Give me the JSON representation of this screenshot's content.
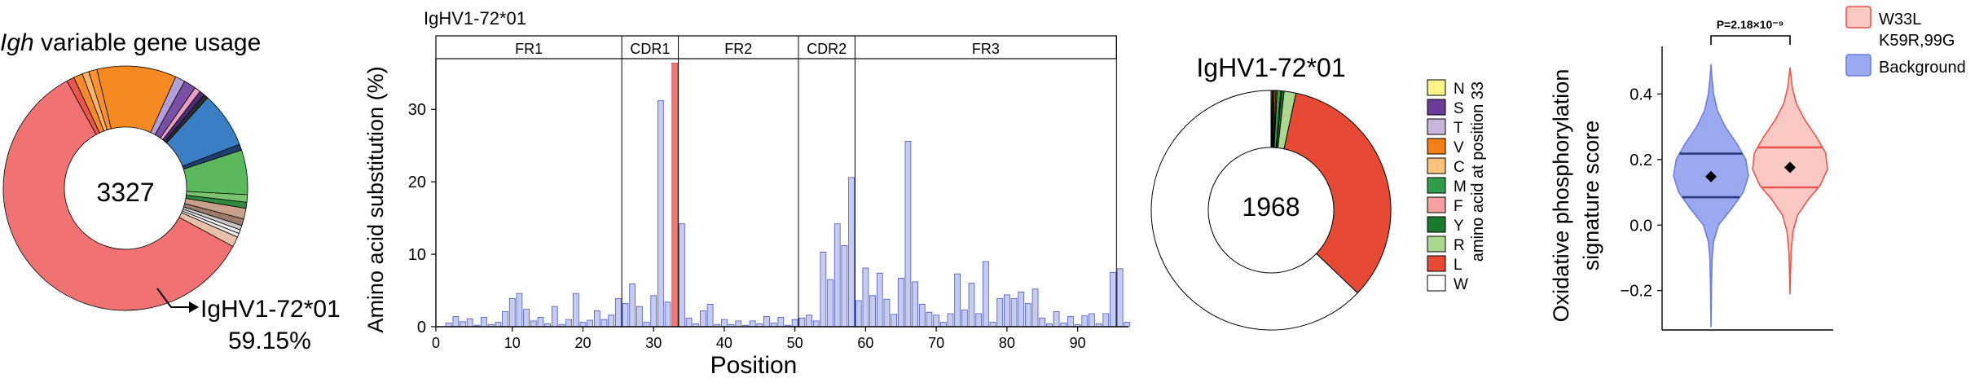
{
  "chart_data": [
    {
      "type": "pie",
      "title_italic": "Igh",
      "title_rest": " variable gene usage",
      "center_label": "3327",
      "callout_label": "IgHV1-72*01",
      "callout_value": "59.15%",
      "slices": [
        {
          "value": 59.15,
          "color": "#f07272"
        },
        {
          "value": 1.0,
          "color": "#e9574a"
        },
        {
          "value": 1.2,
          "color": "#f58a2a"
        },
        {
          "value": 0.9,
          "color": "#fbb26a"
        },
        {
          "value": 1.1,
          "color": "#f7922f"
        },
        {
          "value": 10.5,
          "color": "#f58a22"
        },
        {
          "value": 1.3,
          "color": "#b39fd8"
        },
        {
          "value": 1.6,
          "color": "#7b4fa6"
        },
        {
          "value": 0.8,
          "color": "#e8a0c0"
        },
        {
          "value": 0.7,
          "color": "#4a2d7a"
        },
        {
          "value": 0.6,
          "color": "#2c2c2c"
        },
        {
          "value": 7.4,
          "color": "#3a7fc4"
        },
        {
          "value": 0.8,
          "color": "#1f3f6e"
        },
        {
          "value": 5.9,
          "color": "#5cb85c"
        },
        {
          "value": 1.0,
          "color": "#7ac470"
        },
        {
          "value": 0.8,
          "color": "#2f8a3f"
        },
        {
          "value": 1.4,
          "color": "#c8a08c"
        },
        {
          "value": 0.9,
          "color": "#9c7a6a"
        },
        {
          "value": 0.6,
          "color": "#c8c8c8"
        },
        {
          "value": 0.5,
          "color": "#eeeeee"
        },
        {
          "value": 0.5,
          "color": "#eeeeee"
        },
        {
          "value": 1.35,
          "color": "#e8c0a8"
        }
      ]
    },
    {
      "type": "bar",
      "title": "IgHV1-72*01",
      "xlabel": "Position",
      "ylabel": "Amino acid substitution (%)",
      "xlim": [
        0,
        97
      ],
      "ylim": [
        0,
        37
      ],
      "xticks": [
        0,
        10,
        20,
        30,
        40,
        50,
        60,
        70,
        80,
        90
      ],
      "yticks": [
        0,
        10,
        20,
        30
      ],
      "regions": [
        {
          "label": "FR1",
          "start": 0,
          "end": 25
        },
        {
          "label": "CDR1",
          "start": 25,
          "end": 33
        },
        {
          "label": "FR2",
          "start": 33,
          "end": 50
        },
        {
          "label": "CDR2",
          "start": 50,
          "end": 58
        },
        {
          "label": "FR3",
          "start": 58,
          "end": 95
        }
      ],
      "bar_color": "#c5cbf2",
      "highlight_color": "#f07a72",
      "highlight_position": 33,
      "values": [
        [
          1,
          0.5
        ],
        [
          2,
          1.4
        ],
        [
          3,
          0.7
        ],
        [
          4,
          1.1
        ],
        [
          5,
          0.2
        ],
        [
          6,
          1.3
        ],
        [
          7,
          0.3
        ],
        [
          8,
          0.6
        ],
        [
          9,
          2.1
        ],
        [
          10,
          3.9
        ],
        [
          11,
          4.6
        ],
        [
          12,
          2.4
        ],
        [
          13,
          0.8
        ],
        [
          14,
          1.3
        ],
        [
          15,
          0.4
        ],
        [
          16,
          2.8
        ],
        [
          17,
          0.3
        ],
        [
          18,
          1.0
        ],
        [
          19,
          4.6
        ],
        [
          20,
          0.6
        ],
        [
          21,
          0.9
        ],
        [
          22,
          2.2
        ],
        [
          23,
          1.0
        ],
        [
          24,
          1.6
        ],
        [
          25,
          3.9
        ],
        [
          26,
          3.2
        ],
        [
          27,
          5.9
        ],
        [
          28,
          2.8
        ],
        [
          29,
          0.6
        ],
        [
          30,
          4.3
        ],
        [
          31,
          31.2
        ],
        [
          32,
          3.4
        ],
        [
          33,
          36.4
        ],
        [
          34,
          14.2
        ],
        [
          35,
          1.2
        ],
        [
          36,
          0.4
        ],
        [
          37,
          2.2
        ],
        [
          38,
          3.1
        ],
        [
          39,
          0.3
        ],
        [
          40,
          1.0
        ],
        [
          41,
          0.3
        ],
        [
          42,
          0.8
        ],
        [
          43,
          0.2
        ],
        [
          44,
          0.8
        ],
        [
          45,
          0.4
        ],
        [
          46,
          1.4
        ],
        [
          47,
          0.5
        ],
        [
          48,
          1.3
        ],
        [
          49,
          0.2
        ],
        [
          50,
          1.0
        ],
        [
          51,
          1.2
        ],
        [
          52,
          1.6
        ],
        [
          53,
          0.8
        ],
        [
          54,
          10.3
        ],
        [
          55,
          6.5
        ],
        [
          56,
          14.2
        ],
        [
          57,
          11.2
        ],
        [
          58,
          20.6
        ],
        [
          59,
          3.6
        ],
        [
          60,
          8.1
        ],
        [
          61,
          4.3
        ],
        [
          62,
          7.4
        ],
        [
          63,
          3.8
        ],
        [
          64,
          1.7
        ],
        [
          65,
          6.7
        ],
        [
          66,
          25.6
        ],
        [
          67,
          6.2
        ],
        [
          68,
          3.1
        ],
        [
          69,
          2.0
        ],
        [
          70,
          1.6
        ],
        [
          71,
          0.6
        ],
        [
          72,
          1.8
        ],
        [
          73,
          7.3
        ],
        [
          74,
          2.3
        ],
        [
          75,
          6.0
        ],
        [
          76,
          1.8
        ],
        [
          77,
          9.0
        ],
        [
          78,
          0.6
        ],
        [
          79,
          3.9
        ],
        [
          80,
          4.4
        ],
        [
          81,
          3.9
        ],
        [
          82,
          4.8
        ],
        [
          83,
          3.2
        ],
        [
          84,
          5.2
        ],
        [
          85,
          1.2
        ],
        [
          86,
          0.4
        ],
        [
          87,
          2.1
        ],
        [
          88,
          0.5
        ],
        [
          89,
          1.4
        ],
        [
          90,
          0.3
        ],
        [
          91,
          1.5
        ],
        [
          92,
          1.8
        ],
        [
          93,
          0.4
        ],
        [
          94,
          1.8
        ],
        [
          95,
          7.5
        ],
        [
          96,
          8.0
        ],
        [
          97,
          0.6
        ]
      ]
    },
    {
      "type": "pie",
      "title": "IgHV1-72*01",
      "center_label": "1968",
      "legend_title": "amino acid at position 33",
      "legend": [
        {
          "label": "N",
          "color": "#fbf28a"
        },
        {
          "label": "S",
          "color": "#6a3d9a"
        },
        {
          "label": "T",
          "color": "#c9b5dc"
        },
        {
          "label": "V",
          "color": "#f57f17"
        },
        {
          "label": "C",
          "color": "#fcc27b"
        },
        {
          "label": "M",
          "color": "#2e9e4a"
        },
        {
          "label": "F",
          "color": "#f4a0a0"
        },
        {
          "label": "Y",
          "color": "#1c7a2e"
        },
        {
          "label": "R",
          "color": "#a9d88e"
        },
        {
          "label": "L",
          "color": "#e64a35"
        },
        {
          "label": "W",
          "color": "#ffffff"
        }
      ],
      "slices": [
        {
          "label": "N",
          "value": 0.15
        },
        {
          "label": "S",
          "value": 0.15
        },
        {
          "label": "T",
          "value": 0.15
        },
        {
          "label": "V",
          "value": 0.2
        },
        {
          "label": "C",
          "value": 0.15
        },
        {
          "label": "M",
          "value": 0.5
        },
        {
          "label": "F",
          "value": 0.1
        },
        {
          "label": "Y",
          "value": 0.35
        },
        {
          "label": "R",
          "value": 1.6
        },
        {
          "label": "L",
          "value": 33.8
        },
        {
          "label": "W",
          "value": 62.85
        }
      ]
    },
    {
      "type": "violin",
      "ylabel": "Oxidative phosphorylation signature score",
      "ylim": [
        -0.32,
        0.55
      ],
      "yticks": [
        -0.2,
        0.0,
        0.2,
        0.4
      ],
      "ytick_labels": [
        "−0.2",
        "0.0",
        "0.2",
        "0.4"
      ],
      "pvalue_label": "P=2.18×10⁻⁹",
      "series": [
        {
          "name": "Background",
          "color": "#6b80e0",
          "fill": "#9aa9f0",
          "mean": 0.148,
          "q1": 0.085,
          "q3": 0.218,
          "profile": [
            [
              -0.31,
              0.0
            ],
            [
              -0.25,
              0.008
            ],
            [
              -0.18,
              0.014
            ],
            [
              -0.1,
              0.03
            ],
            [
              -0.05,
              0.07
            ],
            [
              0.0,
              0.2
            ],
            [
              0.05,
              0.55
            ],
            [
              0.1,
              0.86
            ],
            [
              0.15,
              1.0
            ],
            [
              0.2,
              0.93
            ],
            [
              0.25,
              0.68
            ],
            [
              0.3,
              0.38
            ],
            [
              0.35,
              0.17
            ],
            [
              0.4,
              0.07
            ],
            [
              0.45,
              0.025
            ],
            [
              0.49,
              0.0
            ]
          ]
        },
        {
          "name": "W33L\nK59R,99G",
          "color": "#e8564e",
          "fill": "#fac9c3",
          "mean": 0.176,
          "q1": 0.115,
          "q3": 0.237,
          "profile": [
            [
              -0.21,
              0.0
            ],
            [
              -0.15,
              0.012
            ],
            [
              -0.08,
              0.03
            ],
            [
              -0.02,
              0.08
            ],
            [
              0.03,
              0.2
            ],
            [
              0.08,
              0.5
            ],
            [
              0.12,
              0.8
            ],
            [
              0.17,
              1.0
            ],
            [
              0.22,
              0.95
            ],
            [
              0.27,
              0.7
            ],
            [
              0.32,
              0.4
            ],
            [
              0.37,
              0.17
            ],
            [
              0.42,
              0.06
            ],
            [
              0.48,
              0.0
            ]
          ]
        }
      ],
      "legend": [
        {
          "label": "W33L",
          "label2": "K59R,99G",
          "color": "#e8564e",
          "fill": "#fac9c3"
        },
        {
          "label": "Background",
          "color": "#6b80e0",
          "fill": "#9aa9f0"
        }
      ]
    }
  ]
}
